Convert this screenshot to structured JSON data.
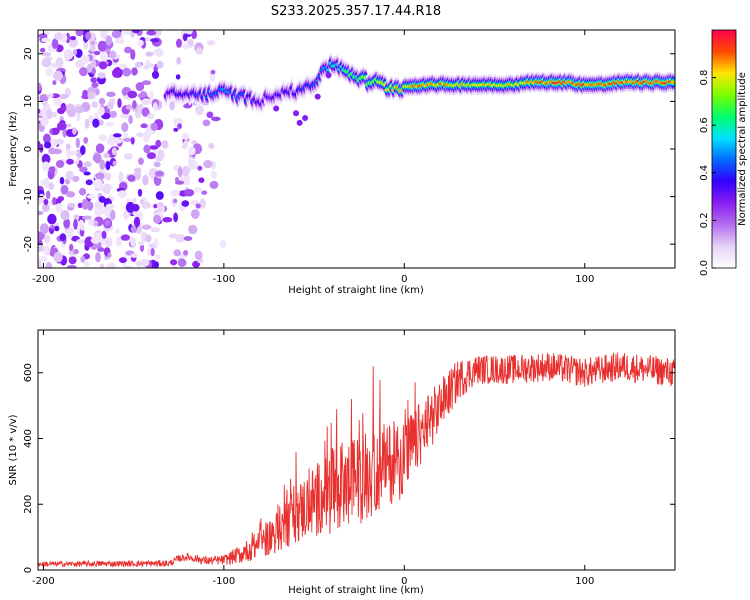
{
  "title": "S233.2025.357.17.44.R18",
  "colors": {
    "snr_line": "#e8302e",
    "axis": "#000000",
    "colormap": [
      "#ffffff",
      "#e6d2f8",
      "#b46ef0",
      "#8a1ef0",
      "#3200ff",
      "#006bff",
      "#00e0ff",
      "#00ff6a",
      "#7aff00",
      "#ffe600",
      "#ff4a00",
      "#ff0050"
    ]
  },
  "chart_data": [
    {
      "type": "heatmap",
      "name": "spectrogram",
      "xlabel": "Height of straight line (km)",
      "ylabel": "Frequency (Hz)",
      "xlim": [
        -203,
        150
      ],
      "ylim": [
        -25,
        25
      ],
      "xticks": [
        -200,
        -100,
        0,
        100
      ],
      "yticks": [
        -20,
        -10,
        0,
        10,
        20
      ],
      "xtick_labels": [
        "-200",
        "-100",
        "0",
        "100"
      ],
      "ytick_labels": [
        "-20",
        "-10",
        "0",
        "10",
        "20"
      ],
      "ridge": {
        "x": [
          -130,
          -120,
          -110,
          -100,
          -90,
          -80,
          -70,
          -60,
          -50,
          -45,
          -40,
          -35,
          -30,
          -25,
          -20,
          -15,
          -10,
          -5,
          0,
          10,
          20,
          30,
          40,
          50,
          60,
          70,
          80,
          90,
          100,
          110,
          120,
          130,
          140,
          150
        ],
        "freq": [
          11.5,
          11.5,
          11.5,
          12,
          11,
          10,
          12,
          12,
          14,
          16,
          18,
          17,
          16,
          15,
          14,
          14,
          13,
          13,
          13,
          13.5,
          13.5,
          13.5,
          13.5,
          13.5,
          13.5,
          14,
          14,
          14,
          13.5,
          13.5,
          14,
          14,
          14,
          14
        ],
        "amp": [
          0.35,
          0.4,
          0.45,
          0.5,
          0.45,
          0.35,
          0.35,
          0.4,
          0.45,
          0.5,
          0.6,
          0.6,
          0.7,
          0.7,
          0.75,
          0.8,
          0.8,
          0.85,
          0.85,
          0.9,
          0.9,
          0.85,
          0.85,
          0.85,
          0.85,
          0.9,
          0.95,
          0.95,
          0.95,
          0.95,
          0.95,
          0.95,
          0.95,
          0.95
        ]
      },
      "noise_region_x": [
        -203,
        -100
      ]
    },
    {
      "type": "colorbar",
      "label": "Normalized spectral amplitude",
      "range": [
        0,
        1
      ],
      "ticks": [
        0.0,
        0.2,
        0.4,
        0.6,
        0.8
      ],
      "tick_labels": [
        "0.0",
        "0.2",
        "0.4",
        "0.6",
        "0.8"
      ]
    },
    {
      "type": "line",
      "name": "snr",
      "xlabel": "Height of straight line (km)",
      "ylabel": "SNR (10 * v/v)",
      "xlim": [
        -203,
        150
      ],
      "ylim": [
        0,
        730
      ],
      "xticks": [
        -200,
        -100,
        0,
        100
      ],
      "yticks": [
        0,
        200,
        400,
        600
      ],
      "xtick_labels": [
        "-200",
        "-100",
        "0",
        "100"
      ],
      "ytick_labels": [
        "0",
        "200",
        "400",
        "600"
      ],
      "trend": {
        "x": [
          -203,
          -130,
          -125,
          -120,
          -110,
          -100,
          -90,
          -80,
          -70,
          -60,
          -50,
          -40,
          -30,
          -20,
          -10,
          0,
          10,
          20,
          30,
          40,
          60,
          80,
          100,
          120,
          150
        ],
        "y": [
          18,
          20,
          35,
          40,
          28,
          30,
          50,
          80,
          120,
          170,
          210,
          240,
          260,
          290,
          320,
          340,
          420,
          500,
          580,
          610,
          610,
          620,
          600,
          620,
          600
        ]
      },
      "noise_amplitude": {
        "x": [
          -203,
          -130,
          -100,
          -80,
          -60,
          -40,
          -20,
          0,
          20,
          40,
          80,
          150
        ],
        "y": [
          8,
          10,
          15,
          45,
          90,
          130,
          140,
          120,
          80,
          45,
          45,
          45
        ]
      }
    }
  ]
}
